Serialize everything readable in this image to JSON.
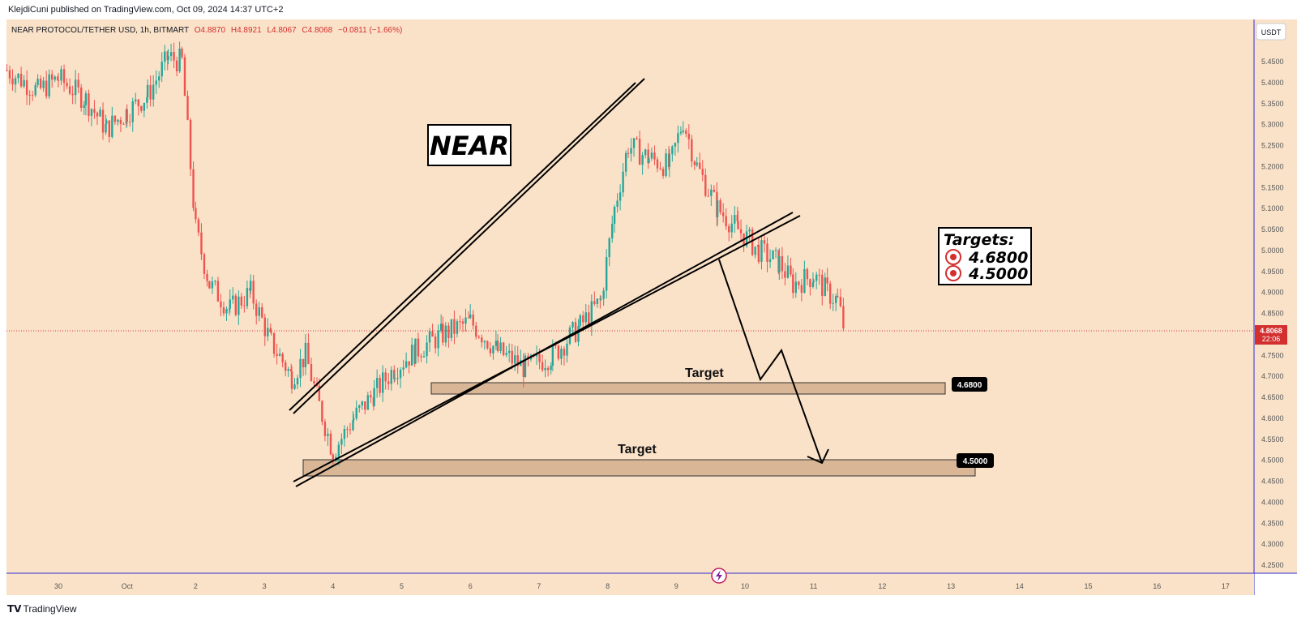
{
  "header": {
    "publisher": "KlejdiCuni published on TradingView.com, Oct 09, 2024 14:37 UTC+2"
  },
  "legend": {
    "symbol": "NEAR PROTOCOL/TETHER USD, 1h, BITMART",
    "open": "O4.8870",
    "high": "H4.8921",
    "low": "L4.8067",
    "close": "C4.8068",
    "change": "−0.0811 (−1.66%)"
  },
  "currency_button": "USDT",
  "title_box": "NEAR",
  "targets_box": {
    "heading": "Targets:",
    "items": [
      "4.6800",
      "4.5000"
    ]
  },
  "zones": [
    {
      "label": "Target",
      "price_label": "4.6800"
    },
    {
      "label": "Target",
      "price_label": "4.5000"
    }
  ],
  "last_price": {
    "value": "4.8068",
    "countdown": "22:06"
  },
  "footer_logo": "TradingView",
  "colors": {
    "background": "#fae2c8",
    "bull": "#26a69a",
    "bear": "#ef5350",
    "zone_fill": "#d9b796",
    "price_marker": "#d32f2f",
    "axis_line": "#2b2bd6"
  },
  "chart_data": {
    "type": "candlestick",
    "y_axis": {
      "range": [
        4.2,
        5.5
      ],
      "ticks": [
        "5.4500",
        "5.4000",
        "5.3500",
        "5.3000",
        "5.2500",
        "5.2000",
        "5.1500",
        "5.1000",
        "5.0500",
        "5.0000",
        "4.9500",
        "4.9000",
        "4.8500",
        "4.8000",
        "4.7500",
        "4.7000",
        "4.6500",
        "4.6000",
        "4.5500",
        "4.5000",
        "4.4500",
        "4.4000",
        "4.3500",
        "4.3000",
        "4.2500"
      ]
    },
    "x_axis": {
      "ticks": [
        "30",
        "Oct",
        "2",
        "3",
        "4",
        "5",
        "6",
        "7",
        "8",
        "9",
        "10",
        "11",
        "12",
        "13",
        "14",
        "15",
        "16",
        "17"
      ]
    },
    "approx_path": [
      [
        29.25,
        5.43
      ],
      [
        29.7,
        5.38
      ],
      [
        30.0,
        5.41
      ],
      [
        30.4,
        5.36
      ],
      [
        30.7,
        5.29
      ],
      [
        31.0,
        5.33
      ],
      [
        31.3,
        5.37
      ],
      [
        31.6,
        5.46
      ],
      [
        31.8,
        5.45
      ],
      [
        32.0,
        5.05
      ],
      [
        32.2,
        4.92
      ],
      [
        32.5,
        4.86
      ],
      [
        32.8,
        4.9
      ],
      [
        33.1,
        4.78
      ],
      [
        33.4,
        4.7
      ],
      [
        33.6,
        4.75
      ],
      [
        33.8,
        4.63
      ],
      [
        34.0,
        4.52
      ],
      [
        34.3,
        4.6
      ],
      [
        34.6,
        4.66
      ],
      [
        34.9,
        4.72
      ],
      [
        35.2,
        4.76
      ],
      [
        35.6,
        4.8
      ],
      [
        36.0,
        4.83
      ],
      [
        36.4,
        4.76
      ],
      [
        36.8,
        4.72
      ],
      [
        37.2,
        4.75
      ],
      [
        37.6,
        4.82
      ],
      [
        37.9,
        4.88
      ],
      [
        38.1,
        5.1
      ],
      [
        38.3,
        5.25
      ],
      [
        38.6,
        5.22
      ],
      [
        38.9,
        5.2
      ],
      [
        39.1,
        5.31
      ],
      [
        39.3,
        5.2
      ],
      [
        39.6,
        5.1
      ],
      [
        39.9,
        5.05
      ],
      [
        40.2,
        5.0
      ],
      [
        40.5,
        4.97
      ],
      [
        40.7,
        4.92
      ],
      [
        41.0,
        4.94
      ],
      [
        41.2,
        4.9
      ],
      [
        41.35,
        4.88
      ],
      [
        41.45,
        4.81
      ]
    ],
    "drawings": [
      {
        "type": "rising-wedge-upper"
      },
      {
        "type": "rising-wedge-lower"
      },
      {
        "type": "target-zone",
        "from": 4.665,
        "to": 4.69,
        "label": "Target 4.6800"
      },
      {
        "type": "target-zone",
        "from": 4.465,
        "to": 4.5,
        "label": "Target 4.5000"
      },
      {
        "type": "projection-arrow",
        "direction": "down"
      }
    ]
  }
}
